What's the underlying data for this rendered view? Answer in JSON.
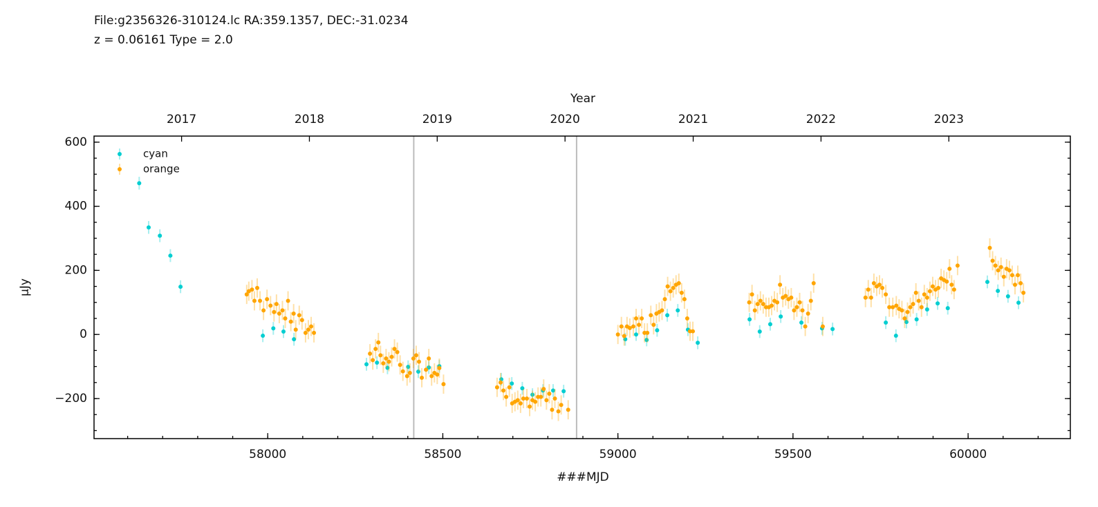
{
  "chart_data": {
    "type": "scatter",
    "title": "File:g2356326-310124.lc  RA:359.1357, DEC:-31.0234",
    "subtitle": "z = 0.06161  Type = 2.0",
    "xlabel": "###MJD",
    "ylabel": "μJy",
    "x2label": "Year",
    "xlim": [
      57504,
      60292
    ],
    "ylim": [
      -325,
      619
    ],
    "xticks": [
      58000,
      58500,
      59000,
      59500,
      60000
    ],
    "yticks": [
      {
        "value": -200,
        "label": "−200"
      },
      0,
      200,
      400,
      600
    ],
    "x2ticks": [
      {
        "value": 57754,
        "label": "2017"
      },
      {
        "value": 58119,
        "label": "2018"
      },
      {
        "value": 58484,
        "label": "2019"
      },
      {
        "value": 58849,
        "label": "2020"
      },
      {
        "value": 59215,
        "label": "2021"
      },
      {
        "value": 59580,
        "label": "2022"
      },
      {
        "value": 59945,
        "label": "2023"
      }
    ],
    "vlines": [
      58417,
      58882
    ],
    "legend": "upper left",
    "series": [
      {
        "name": "cyan",
        "color": "#00ced1",
        "yerr": 20,
        "x": [
          57633,
          57660,
          57692,
          57722,
          57751,
          57986,
          58016,
          58045,
          58075,
          58282,
          58312,
          58342,
          58401,
          58430,
          58460,
          58490,
          58667,
          58697,
          58727,
          58756,
          58786,
          58815,
          58845,
          59021,
          59052,
          59082,
          59112,
          59141,
          59171,
          59200,
          59228,
          59376,
          59405,
          59435,
          59465,
          59524,
          59583,
          59613,
          59765,
          59794,
          59824,
          59853,
          59883,
          59913,
          59942,
          60055,
          60085,
          60114,
          60144
        ],
        "values": [
          472,
          334,
          308,
          246,
          149,
          -4,
          19,
          9,
          -15,
          -93,
          -88,
          -104,
          -101,
          -116,
          -103,
          -99,
          -140,
          -153,
          -168,
          -188,
          -175,
          -175,
          -177,
          -15,
          0,
          -17,
          13,
          60,
          75,
          15,
          -26,
          47,
          9,
          32,
          56,
          37,
          19,
          17,
          37,
          -4,
          39,
          47,
          78,
          97,
          82,
          164,
          136,
          119,
          99
        ]
      },
      {
        "name": "orange",
        "color": "#ffa500",
        "yerr": 30,
        "x": [
          57940,
          57946,
          57955,
          57962,
          57970,
          57978,
          57988,
          57998,
          58008,
          58018,
          58025,
          58033,
          58042,
          58050,
          58058,
          58066,
          58074,
          58080,
          58090,
          58098,
          58108,
          58116,
          58124,
          58132,
          58292,
          58300,
          58308,
          58316,
          58322,
          58330,
          58338,
          58346,
          58354,
          58362,
          58370,
          58378,
          58386,
          58398,
          58406,
          58416,
          58424,
          58432,
          58440,
          58452,
          58460,
          58468,
          58476,
          58484,
          58490,
          58502,
          58655,
          58665,
          58673,
          58681,
          58690,
          58698,
          58706,
          58714,
          58722,
          58730,
          58740,
          58748,
          58756,
          58764,
          58772,
          58780,
          58788,
          58796,
          58804,
          58812,
          58820,
          58830,
          58838,
          58858,
          59000,
          59010,
          59018,
          59026,
          59034,
          59044,
          59052,
          59060,
          59068,
          59076,
          59084,
          59094,
          59102,
          59110,
          59118,
          59126,
          59134,
          59142,
          59150,
          59158,
          59166,
          59174,
          59182,
          59190,
          59198,
          59206,
          59214,
          59375,
          59383,
          59391,
          59399,
          59407,
          59415,
          59423,
          59431,
          59439,
          59447,
          59455,
          59463,
          59471,
          59479,
          59487,
          59495,
          59503,
          59511,
          59519,
          59527,
          59535,
          59543,
          59551,
          59559,
          59585,
          59707,
          59715,
          59723,
          59731,
          59739,
          59747,
          59755,
          59765,
          59775,
          59785,
          59795,
          59803,
          59811,
          59819,
          59827,
          59835,
          59843,
          59851,
          59859,
          59867,
          59875,
          59883,
          59891,
          59899,
          59907,
          59915,
          59923,
          59931,
          59939,
          59947,
          59953,
          59960,
          59970,
          60062,
          60070,
          60078,
          60086,
          60094,
          60102,
          60110,
          60118,
          60126,
          60134,
          60142,
          60150,
          60158
        ],
        "values": [
          125,
          135,
          140,
          105,
          145,
          105,
          75,
          110,
          90,
          70,
          95,
          65,
          75,
          50,
          105,
          40,
          65,
          15,
          60,
          45,
          5,
          15,
          25,
          5,
          -60,
          -80,
          -45,
          -25,
          -65,
          -90,
          -75,
          -85,
          -70,
          -45,
          -55,
          -95,
          -115,
          -130,
          -120,
          -75,
          -65,
          -85,
          -135,
          -110,
          -75,
          -130,
          -120,
          -125,
          -105,
          -155,
          -165,
          -150,
          -175,
          -195,
          -165,
          -215,
          -210,
          -205,
          -215,
          -200,
          -200,
          -225,
          -205,
          -210,
          -195,
          -195,
          -170,
          -205,
          -185,
          -235,
          -200,
          -240,
          -220,
          -235,
          0,
          25,
          -5,
          25,
          20,
          25,
          50,
          30,
          50,
          5,
          5,
          60,
          30,
          65,
          70,
          75,
          110,
          150,
          135,
          145,
          155,
          160,
          130,
          110,
          50,
          10,
          10,
          100,
          125,
          75,
          95,
          105,
          95,
          85,
          85,
          90,
          105,
          100,
          155,
          115,
          120,
          110,
          115,
          75,
          85,
          100,
          75,
          25,
          65,
          105,
          160,
          25,
          115,
          140,
          115,
          160,
          150,
          155,
          145,
          125,
          85,
          85,
          90,
          80,
          75,
          50,
          70,
          85,
          95,
          130,
          105,
          85,
          125,
          115,
          135,
          150,
          140,
          145,
          175,
          170,
          165,
          205,
          155,
          140,
          215,
          270,
          230,
          215,
          200,
          210,
          180,
          205,
          200,
          185,
          155,
          185,
          160,
          130
        ]
      }
    ]
  }
}
